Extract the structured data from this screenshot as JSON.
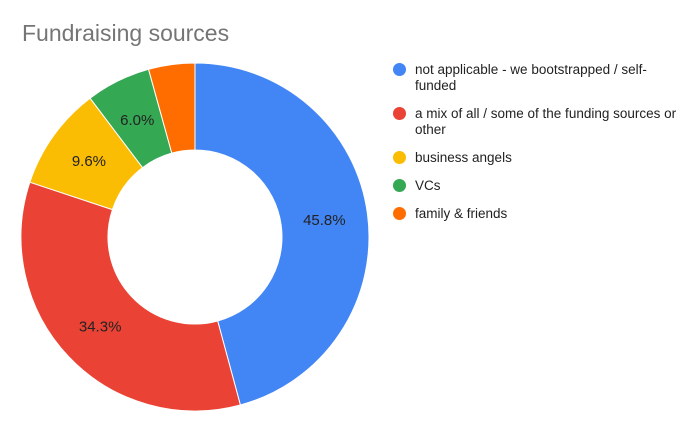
{
  "chart_data": {
    "type": "pie",
    "donut": true,
    "title": "Fundraising sources",
    "legend_position": "right",
    "series": [
      {
        "name": "not applicable - we bootstrapped / self-funded",
        "value": 45.8,
        "label": "45.8%",
        "color": "#4285F4"
      },
      {
        "name": "a mix of all / some of the funding sources or other",
        "value": 34.3,
        "label": "34.3%",
        "color": "#EA4335"
      },
      {
        "name": "business angels",
        "value": 9.6,
        "label": "9.6%",
        "color": "#FBBC04"
      },
      {
        "name": "VCs",
        "value": 6.0,
        "label": "6.0%",
        "color": "#34A853"
      },
      {
        "name": "family & friends",
        "value": 4.3,
        "label": "",
        "color": "#FF6D01"
      }
    ]
  }
}
